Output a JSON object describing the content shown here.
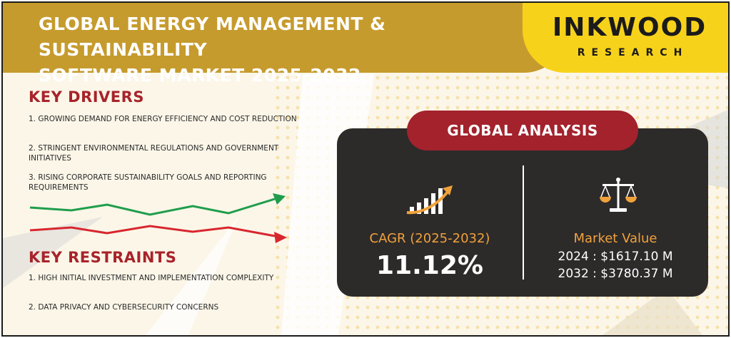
{
  "header": {
    "title_line1": "GLOBAL ENERGY MANAGEMENT & SUSTAINABILITY",
    "title_line2": "SOFTWARE MARKET 2025-2032"
  },
  "brand": {
    "name": "INKWOOD",
    "sub": "RESEARCH"
  },
  "drivers": {
    "title": "KEY DRIVERS",
    "items": [
      "1. GROWING DEMAND FOR ENERGY EFFICIENCY AND COST REDUCTION",
      "2. STRINGENT ENVIRONMENTAL REGULATIONS AND GOVERNMENT INITIATIVES",
      "3. RISING CORPORATE SUSTAINABILITY GOALS AND REPORTING REQUIREMENTS"
    ]
  },
  "restraints": {
    "title": "KEY RESTRAINTS",
    "items": [
      "1. HIGH INITIAL INVESTMENT AND IMPLEMENTATION COMPLEXITY",
      "2. DATA PRIVACY AND CYBERSECURITY CONCERNS"
    ]
  },
  "analysis": {
    "title": "GLOBAL ANALYSIS",
    "cagr_label": "CAGR (2025-2032)",
    "cagr_value": "11.12%",
    "market_label": "Market Value",
    "market_2024": "2024 : $1617.10  M",
    "market_2032": "2032 : $3780.37 M"
  },
  "icons": {
    "growth": "growth-chart-icon",
    "scale": "balance-scale-icon",
    "trend_up": "up-trend-arrow",
    "trend_down": "down-trend-arrow"
  },
  "colors": {
    "header_gold": "#c69b2d",
    "brand_yellow": "#f7d21a",
    "accent_red": "#a3222c",
    "orange": "#f0a23a",
    "panel_dark": "#2d2a2a",
    "up_green": "#1f9d4c",
    "down_red": "#d8262e"
  }
}
